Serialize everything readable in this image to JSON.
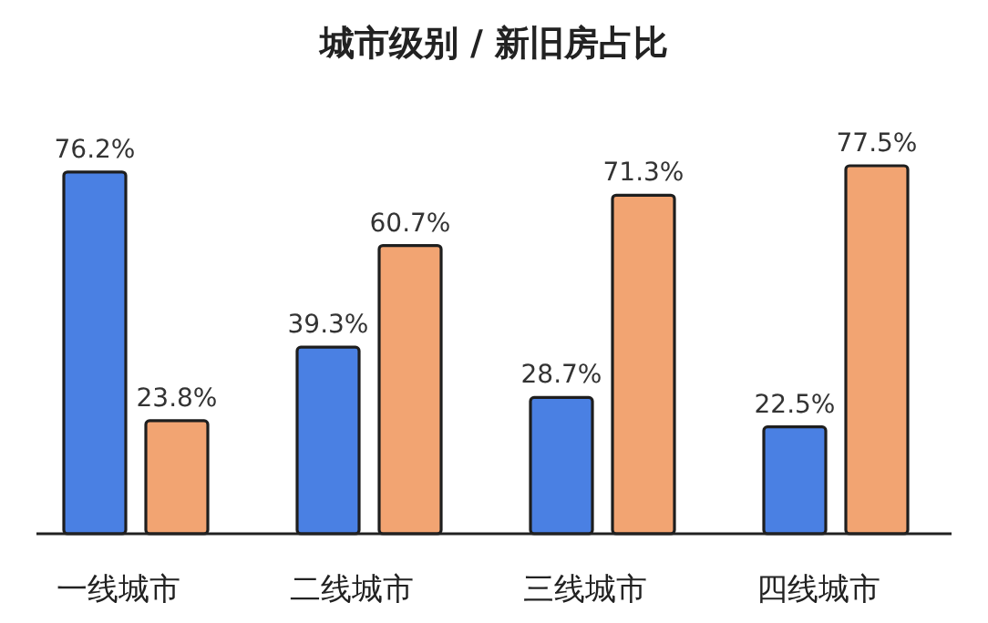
{
  "chart_data": {
    "type": "bar",
    "title": "城市级别 / 新旧房占比",
    "categories": [
      "一线城市",
      "二线城市",
      "三线城市",
      "四线城市"
    ],
    "series": [
      {
        "color": "#4a80e3",
        "values": [
          76.2,
          39.3,
          28.7,
          22.5
        ],
        "value_labels": [
          "76.2%",
          "39.3%",
          "28.7%",
          "22.5%"
        ]
      },
      {
        "color": "#f2a472",
        "values": [
          23.8,
          60.7,
          71.3,
          77.5
        ],
        "value_labels": [
          "23.8%",
          "60.7%",
          "71.3%",
          "77.5%"
        ]
      }
    ]
  }
}
